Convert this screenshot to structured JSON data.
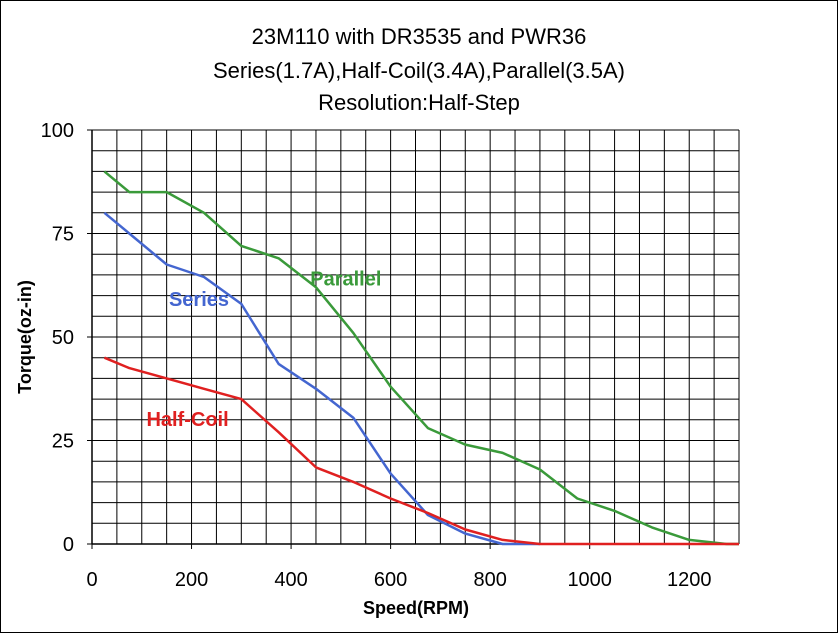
{
  "chart_data": {
    "type": "line",
    "title_lines": [
      "23M110 with DR3535 and PWR36",
      "Series(1.7A),Half-Coil(3.4A),Parallel(3.5A)",
      "Resolution:Half-Step"
    ],
    "xlabel": "Speed(RPM)",
    "ylabel": "Torque(oz-in)",
    "xlim": [
      0,
      1300
    ],
    "ylim": [
      0,
      100
    ],
    "x_ticks": [
      0,
      200,
      400,
      600,
      800,
      1000,
      1200
    ],
    "y_ticks": [
      0,
      25,
      50,
      75,
      100
    ],
    "grid": true,
    "legend": "none",
    "series": [
      {
        "name": "Parallel",
        "color": "#3a9a3a",
        "x": [
          25,
          75,
          150,
          225,
          300,
          375,
          450,
          525,
          600,
          675,
          750,
          825,
          900,
          975,
          1050,
          1125,
          1200,
          1275,
          1300
        ],
        "y": [
          90,
          85,
          85,
          80,
          72,
          69,
          62,
          51,
          38,
          28,
          24,
          22,
          18,
          11,
          8,
          4,
          1,
          0,
          0
        ]
      },
      {
        "name": "Series",
        "color": "#4466d0",
        "x": [
          25,
          75,
          150,
          225,
          300,
          375,
          450,
          525,
          600,
          675,
          750,
          825,
          900
        ],
        "y": [
          80,
          75,
          67.5,
          64.5,
          58,
          43.5,
          37.5,
          30.5,
          17,
          7,
          2.5,
          0,
          0
        ]
      },
      {
        "name": "Half-Coil",
        "color": "#e02020",
        "x": [
          25,
          75,
          150,
          225,
          300,
          375,
          450,
          525,
          600,
          675,
          750,
          825,
          900,
          975,
          1050,
          1125,
          1200,
          1275,
          1300
        ],
        "y": [
          45,
          42.5,
          40,
          37.5,
          35,
          27,
          18.5,
          15,
          11,
          7.5,
          3.5,
          1,
          0,
          0,
          0,
          0,
          0,
          0,
          0
        ]
      }
    ],
    "annotations": [
      {
        "text": "Parallel",
        "x": 510,
        "y": 62.5,
        "color": "#3a9a3a"
      },
      {
        "text": "Series",
        "x": 215,
        "y": 57.5,
        "color": "#4466d0"
      },
      {
        "text": "Half-Coil",
        "x": 192,
        "y": 28.5,
        "color": "#e02020"
      }
    ]
  }
}
